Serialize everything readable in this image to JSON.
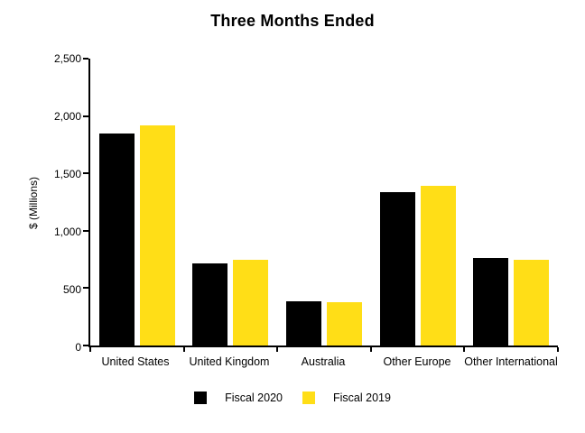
{
  "chart_data": {
    "type": "bar",
    "title": "Three Months Ended",
    "ylabel": "$ (Millions)",
    "xlabel": "",
    "categories": [
      "United States",
      "United Kingdom",
      "Australia",
      "Other Europe",
      "Other International"
    ],
    "series": [
      {
        "name": "Fiscal 2020",
        "color": "#000000",
        "values": [
          1845,
          715,
          385,
          1335,
          765
        ]
      },
      {
        "name": "Fiscal 2019",
        "color": "#FFDE17",
        "values": [
          1915,
          750,
          375,
          1395,
          750
        ]
      }
    ],
    "ylim": [
      0,
      2500
    ],
    "yticks": [
      0,
      500,
      1000,
      1500,
      2000,
      2500
    ],
    "ytick_labels": [
      "0",
      "500",
      "1,000",
      "1,500",
      "2,000",
      "2,500"
    ],
    "grid": false,
    "legend_position": "bottom",
    "axis_color": "#000000",
    "background_color": "#ffffff"
  }
}
